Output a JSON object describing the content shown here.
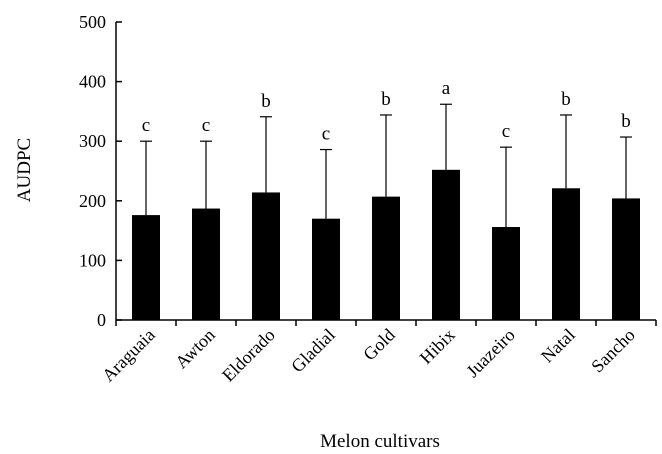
{
  "chart_data": {
    "type": "bar",
    "title": "",
    "xlabel": "Melon cultivars",
    "ylabel": "AUDPC",
    "ylim": [
      0,
      500
    ],
    "yticks": [
      0,
      100,
      200,
      300,
      400,
      500
    ],
    "grid": false,
    "categories": [
      "Araguaia",
      "Awton",
      "Eldorado",
      "Gladial",
      "Gold",
      "Hibix",
      "Juazeiro",
      "Natal",
      "Sancho"
    ],
    "values": [
      176,
      187,
      214,
      170,
      207,
      252,
      156,
      221,
      204
    ],
    "error_upper": [
      300,
      300,
      341,
      286,
      344,
      362,
      290,
      344,
      307
    ],
    "letters": [
      "c",
      "c",
      "b",
      "c",
      "b",
      "a",
      "c",
      "b",
      "b"
    ],
    "bar_color": "#000000"
  }
}
